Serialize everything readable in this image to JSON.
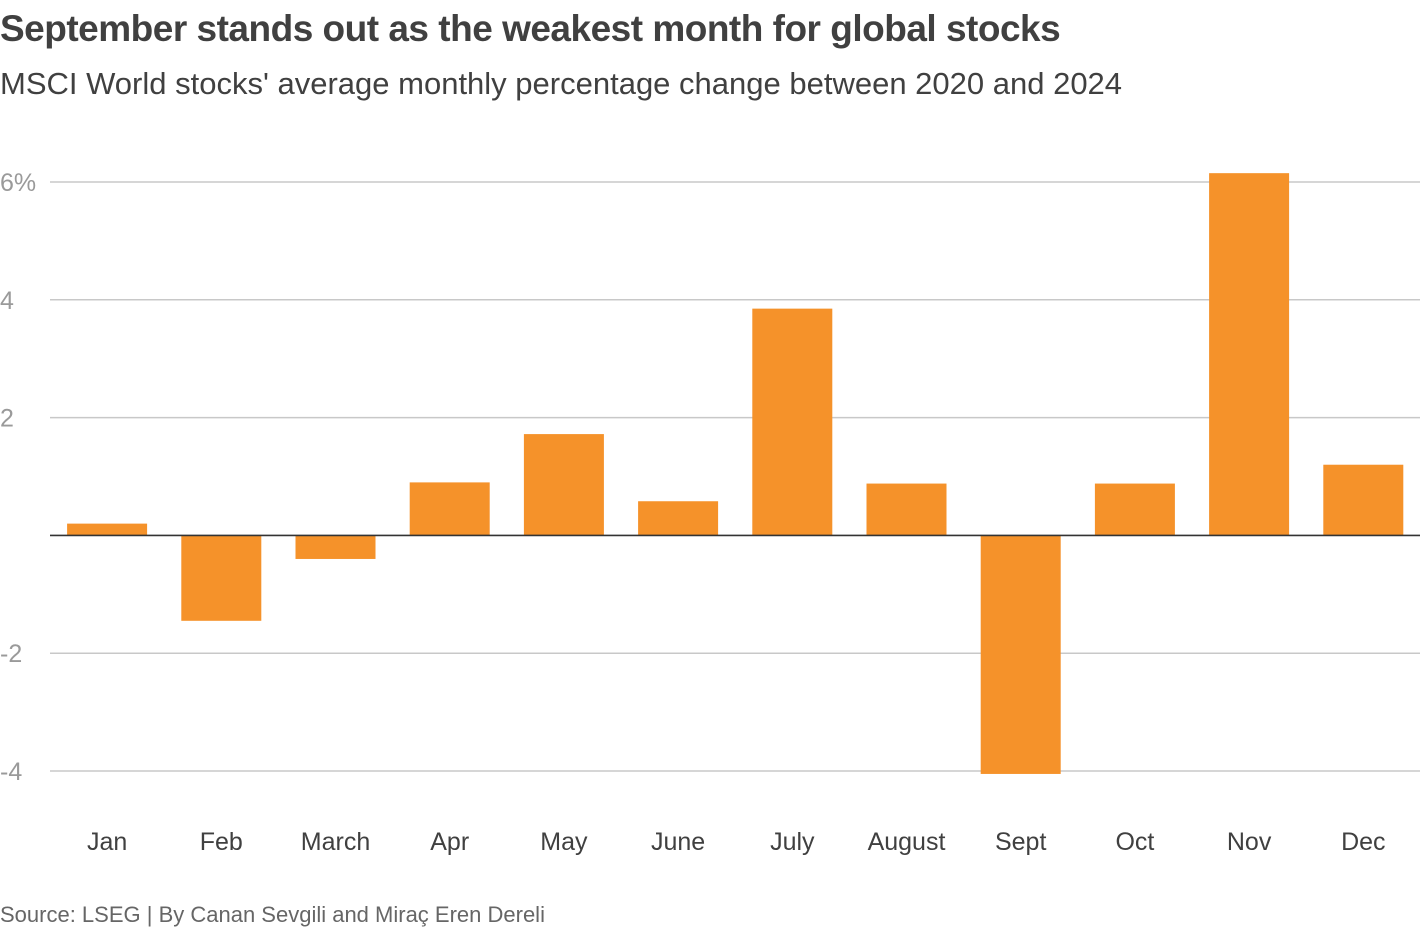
{
  "title": "September stands out as the weakest month for global stocks",
  "subtitle": "MSCI World stocks' average monthly percentage change between 2020 and 2024",
  "source": "Source: LSEG | By Canan Sevgili and Miraç Eren Dereli",
  "colors": {
    "bar": "#f5922a",
    "grid": "#c8c8c8",
    "zero_line": "#333333",
    "tick_label": "#9a9a9a",
    "category_label": "#404040"
  },
  "chart_data": {
    "type": "bar",
    "title": "September stands out as the weakest month for global stocks",
    "subtitle": "MSCI World stocks' average monthly percentage change between 2020 and 2024",
    "xlabel": "",
    "ylabel": "",
    "ylim": [
      -4,
      6
    ],
    "yticks": [
      6,
      4,
      2,
      -2,
      -4
    ],
    "ytick_labels": [
      "6%",
      "4",
      "2",
      "-2",
      "-4"
    ],
    "grid": true,
    "categories": [
      "Jan",
      "Feb",
      "March",
      "Apr",
      "May",
      "June",
      "July",
      "August",
      "Sept",
      "Oct",
      "Nov",
      "Dec"
    ],
    "values": [
      0.2,
      -1.45,
      -0.4,
      0.9,
      1.72,
      0.58,
      3.85,
      0.88,
      -4.05,
      0.88,
      6.15,
      1.2
    ]
  }
}
